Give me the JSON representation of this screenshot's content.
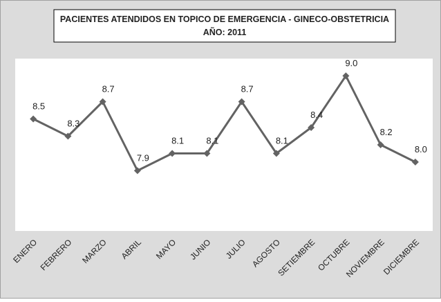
{
  "chart_data": {
    "type": "line",
    "title": "PACIENTES ATENDIDOS EN TOPICO DE EMERGENCIA - GINECO-OBSTETRICIA",
    "subtitle": "AÑO: 2011",
    "categories": [
      "ENERO",
      "FEBRERO",
      "MARZO",
      "ABRIL",
      "MAYO",
      "JUNIO",
      "JULIO",
      "AGOSTO",
      "SETIEMBRE",
      "OCTUBRE",
      "NOVIEMBRE",
      "DICIEMBRE"
    ],
    "values": [
      8.5,
      8.3,
      8.7,
      7.9,
      8.1,
      8.1,
      8.7,
      8.1,
      8.4,
      9.0,
      8.2,
      8.0
    ],
    "value_labels": [
      "8.5",
      "8.3",
      "8.7",
      "7.9",
      "8.1",
      "8.1",
      "8.7",
      "8.1",
      "8.4",
      "9.0",
      "8.2",
      "8.0"
    ],
    "color": "#636363",
    "ylim": [
      7.2,
      9.2
    ]
  }
}
